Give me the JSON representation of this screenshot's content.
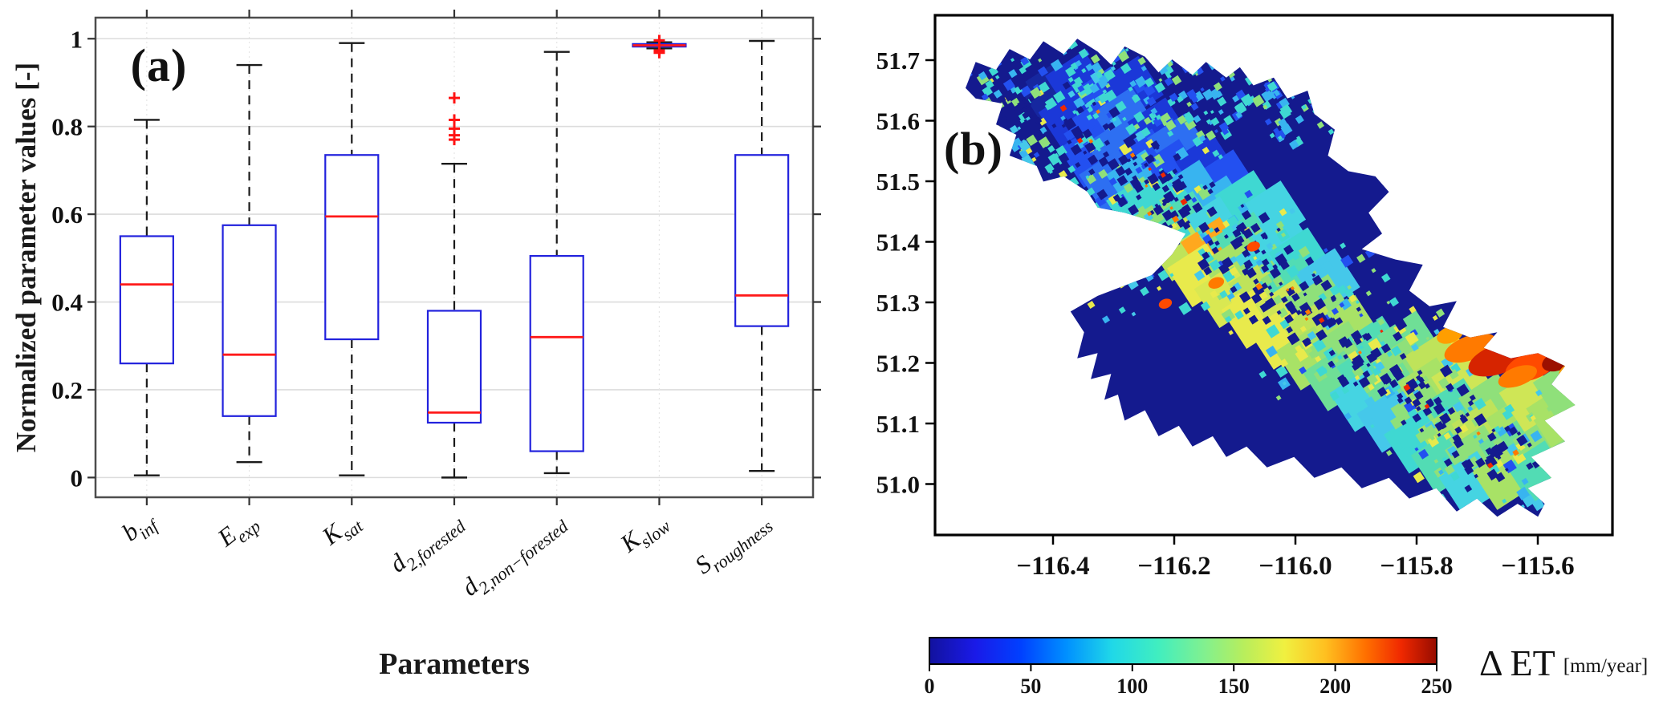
{
  "chart_data": [
    {
      "type": "boxplot",
      "panel": "(a)",
      "xlabel": "Parameters",
      "ylabel": "Normalized parameter values [-]",
      "ylim": [
        -0.045,
        1.048
      ],
      "yticks": [
        0,
        0.2,
        0.4,
        0.6,
        0.8,
        1
      ],
      "ytick_labels": [
        "0",
        "0.2",
        "0.4",
        "0.6",
        "0.8",
        "1"
      ],
      "grid": "horizontal solid, vertical dotted",
      "legend_position": "none",
      "box_color": "#2222dd",
      "median_color": "#ff1a1a",
      "whisker_color": "#1a1a1a",
      "outlier_color": "#ff1212",
      "outlier_marker": "+",
      "categories": [
        {
          "main": "b",
          "sub": "inf"
        },
        {
          "main": "E",
          "sub": "exp"
        },
        {
          "main": "K",
          "sub": "sat"
        },
        {
          "main": "d",
          "sub": "2,forested"
        },
        {
          "main": "d",
          "sub": "2,non−forested"
        },
        {
          "main": "K",
          "sub": "slow"
        },
        {
          "main": "S",
          "sub": "roughness"
        }
      ],
      "boxes": [
        {
          "whisker_low": 0.005,
          "q1": 0.26,
          "median": 0.44,
          "q3": 0.55,
          "whisker_high": 0.815,
          "outliers": []
        },
        {
          "whisker_low": 0.035,
          "q1": 0.14,
          "median": 0.28,
          "q3": 0.575,
          "whisker_high": 0.94,
          "outliers": []
        },
        {
          "whisker_low": 0.005,
          "q1": 0.315,
          "median": 0.595,
          "q3": 0.735,
          "whisker_high": 0.99,
          "outliers": []
        },
        {
          "whisker_low": 0.0,
          "q1": 0.125,
          "median": 0.148,
          "q3": 0.38,
          "whisker_high": 0.715,
          "outliers": [
            0.77,
            0.78,
            0.795,
            0.815,
            0.865
          ]
        },
        {
          "whisker_low": 0.01,
          "q1": 0.06,
          "median": 0.32,
          "q3": 0.505,
          "whisker_high": 0.97,
          "outliers": []
        },
        {
          "whisker_low": 0.978,
          "q1": 0.982,
          "median": 0.985,
          "q3": 0.988,
          "whisker_high": 0.992,
          "outliers": [
            0.996,
            0.973,
            0.968
          ]
        },
        {
          "whisker_low": 0.015,
          "q1": 0.345,
          "median": 0.415,
          "q3": 0.735,
          "whisker_high": 0.995,
          "outliers": []
        }
      ]
    },
    {
      "type": "heatmap",
      "panel": "(b)",
      "lat_ticks": [
        51.7,
        51.6,
        51.5,
        51.4,
        51.3,
        51.2,
        51.1,
        51.0
      ],
      "ytick_labels": [
        "51.7",
        "51.6",
        "51.5",
        "51.4",
        "51.3",
        "51.2",
        "51.1",
        "51.0"
      ],
      "lon_ticks": [
        -116.4,
        -116.2,
        -116.0,
        -115.8,
        -115.6
      ],
      "xtick_labels": [
        "−116.4",
        "−116.2",
        "−116.0",
        "−115.8",
        "−115.6"
      ],
      "lon_range": [
        -116.6,
        -115.48
      ],
      "lat_range": [
        50.92,
        51.77
      ],
      "colorbar": {
        "label": "Δ ET",
        "units": "[mm/year]",
        "colormap": "jet",
        "range": [
          0,
          250
        ],
        "ticks": [
          0,
          50,
          100,
          150,
          200,
          250
        ],
        "tick_labels": [
          "0",
          "50",
          "100",
          "150",
          "200",
          "250"
        ]
      },
      "background_value_color": "#141a8e",
      "speckle_palette": [
        "#3fd8d2",
        "#8fe07a",
        "#45c8ea",
        "#e8ea4c",
        "#2350f0",
        "#38b4f0"
      ],
      "outline": [
        [
          4.5,
          14
        ],
        [
          6,
          9
        ],
        [
          9,
          10.5
        ],
        [
          11,
          6.5
        ],
        [
          14,
          8.5
        ],
        [
          16,
          5
        ],
        [
          19,
          7.5
        ],
        [
          21,
          4.5
        ],
        [
          24,
          7
        ],
        [
          26,
          9.5
        ],
        [
          28,
          6
        ],
        [
          31,
          8
        ],
        [
          33,
          11
        ],
        [
          35,
          8.5
        ],
        [
          38,
          11.5
        ],
        [
          40,
          9
        ],
        [
          43,
          12
        ],
        [
          45,
          10
        ],
        [
          47,
          13.5
        ],
        [
          50,
          12
        ],
        [
          52,
          16
        ],
        [
          55,
          14.5
        ],
        [
          56,
          19
        ],
        [
          59,
          22
        ],
        [
          58,
          27
        ],
        [
          61,
          30
        ],
        [
          65,
          31
        ],
        [
          67,
          34
        ],
        [
          64,
          38
        ],
        [
          66,
          42
        ],
        [
          63,
          45
        ],
        [
          68,
          47
        ],
        [
          72,
          48
        ],
        [
          70,
          53
        ],
        [
          73,
          56
        ],
        [
          77,
          55
        ],
        [
          75,
          60
        ],
        [
          79,
          62
        ],
        [
          83,
          61
        ],
        [
          81,
          64
        ],
        [
          85,
          66
        ],
        [
          89,
          65
        ],
        [
          93,
          67.5
        ],
        [
          91,
          71
        ],
        [
          94.5,
          75
        ],
        [
          90,
          78
        ],
        [
          93,
          82
        ],
        [
          88,
          85
        ],
        [
          91,
          89
        ],
        [
          87.5,
          91
        ],
        [
          90,
          94
        ],
        [
          89,
          96.5
        ],
        [
          86,
          94
        ],
        [
          83,
          96.5
        ],
        [
          80,
          93
        ],
        [
          77,
          95.5
        ],
        [
          74,
          91
        ],
        [
          70,
          93
        ],
        [
          67,
          89
        ],
        [
          63,
          91
        ],
        [
          60,
          87
        ],
        [
          56,
          89
        ],
        [
          53,
          85
        ],
        [
          49,
          87
        ],
        [
          46,
          83
        ],
        [
          43,
          85
        ],
        [
          41,
          81
        ],
        [
          38,
          83
        ],
        [
          36,
          79
        ],
        [
          33,
          81
        ],
        [
          31,
          76
        ],
        [
          28,
          78
        ],
        [
          27,
          73
        ],
        [
          25,
          74
        ],
        [
          26,
          69
        ],
        [
          23,
          70
        ],
        [
          24,
          65
        ],
        [
          21,
          66
        ],
        [
          22,
          61
        ],
        [
          20,
          57
        ],
        [
          24,
          54
        ],
        [
          28,
          52
        ],
        [
          32,
          50
        ],
        [
          35,
          46
        ],
        [
          37,
          42
        ],
        [
          33,
          40
        ],
        [
          28,
          38
        ],
        [
          24,
          37
        ],
        [
          22.5,
          34
        ],
        [
          19,
          31
        ],
        [
          16,
          32
        ],
        [
          15,
          29
        ],
        [
          11,
          27
        ],
        [
          12,
          23
        ],
        [
          9,
          21
        ],
        [
          10,
          17
        ],
        [
          6,
          16
        ]
      ],
      "cells": [
        [
          17,
          15,
          "#16279f"
        ],
        [
          21,
          13,
          "#1b38d8"
        ],
        [
          25,
          16,
          "#2350f0"
        ],
        [
          29,
          14,
          "#1b38d8"
        ],
        [
          20,
          20,
          "#1b38d8"
        ],
        [
          24,
          22,
          "#2350f0"
        ],
        [
          28,
          20,
          "#2d6ff2"
        ],
        [
          33,
          22,
          "#1b38d8"
        ],
        [
          23,
          27,
          "#2350f0"
        ],
        [
          27,
          26,
          "#2d6ff2"
        ],
        [
          31,
          28,
          "#2350f0"
        ],
        [
          36,
          25,
          "#2d6ff2"
        ],
        [
          26,
          32,
          "#2d6ff2"
        ],
        [
          30,
          32,
          "#38b4f0"
        ],
        [
          35,
          30,
          "#2350f0"
        ],
        [
          40,
          29,
          "#1b38d8"
        ],
        [
          43,
          32,
          "#2350f0"
        ],
        [
          38,
          34,
          "#38b4f0"
        ],
        [
          34,
          36,
          "#3fd8d2"
        ],
        [
          30,
          37,
          "#3fd8d2"
        ],
        [
          42,
          37,
          "#38b4f0"
        ],
        [
          46,
          36,
          "#3fd8d2"
        ],
        [
          50,
          38,
          "#45d4e2"
        ],
        [
          33,
          41,
          "#8fe07a"
        ],
        [
          37,
          40,
          "#52dcb4"
        ],
        [
          41,
          41,
          "#45d4e2"
        ],
        [
          36,
          45,
          "#bfe35a"
        ],
        [
          41,
          45,
          "#ffa81e"
        ],
        [
          46,
          44,
          "#52dcb4"
        ],
        [
          51,
          43,
          "#45d4e2"
        ],
        [
          39,
          50,
          "#e8ea4c"
        ],
        [
          44,
          49,
          "#a8e266"
        ],
        [
          49,
          48,
          "#45d4e2"
        ],
        [
          54,
          47,
          "#3fd8d2"
        ],
        [
          43,
          54,
          "#d9e852"
        ],
        [
          48,
          53,
          "#bfe35a"
        ],
        [
          53,
          52,
          "#52dcb4"
        ],
        [
          58,
          51,
          "#45c8ea"
        ],
        [
          47,
          58,
          "#e8ea4c"
        ],
        [
          52,
          57,
          "#cfe656"
        ],
        [
          57,
          56,
          "#8fe07a"
        ],
        [
          51,
          62,
          "#e8ea4c"
        ],
        [
          56,
          61,
          "#bfe35a"
        ],
        [
          61,
          60,
          "#a8e266"
        ],
        [
          55,
          66,
          "#a8e266"
        ],
        [
          60,
          65,
          "#8fe07a"
        ],
        [
          65,
          64,
          "#52dcb4"
        ],
        [
          70,
          63,
          "#6fdf96"
        ],
        [
          59,
          70,
          "#6fdf96"
        ],
        [
          64,
          69,
          "#52dcb4"
        ],
        [
          69,
          68,
          "#8fe07a"
        ],
        [
          74,
          67,
          "#bfe35a"
        ],
        [
          63,
          74,
          "#45d4e2"
        ],
        [
          68,
          73,
          "#6fdf96"
        ],
        [
          73,
          72,
          "#a8e266"
        ],
        [
          78,
          71,
          "#cfe656"
        ],
        [
          67,
          78,
          "#45c8ea"
        ],
        [
          72,
          77,
          "#8fe07a"
        ],
        [
          77,
          76,
          "#52dcb4"
        ],
        [
          82,
          75,
          "#8fe07a"
        ],
        [
          71,
          82,
          "#3fd8d2"
        ],
        [
          76,
          81,
          "#a8e266"
        ],
        [
          81,
          80,
          "#bfe35a"
        ],
        [
          86,
          79,
          "#a8e266"
        ],
        [
          75,
          86,
          "#52dcb4"
        ],
        [
          80,
          85,
          "#8fe07a"
        ],
        [
          85,
          84,
          "#6fdf96"
        ],
        [
          90,
          83,
          "#8fe07a"
        ],
        [
          79,
          90,
          "#45d4e2"
        ],
        [
          84,
          89,
          "#a8e266"
        ],
        [
          89,
          88,
          "#52dcb4"
        ],
        [
          88,
          74,
          "#cfe656"
        ],
        [
          92,
          77,
          "#a8e266"
        ],
        [
          93,
          72,
          "#8fe07a"
        ]
      ],
      "hotspots": [
        [
          79,
          64,
          4,
          1.8,
          "#ff7a00"
        ],
        [
          83.5,
          66,
          5,
          2.2,
          "#d62400"
        ],
        [
          88,
          67.5,
          4,
          2,
          "#ff4a00"
        ],
        [
          92,
          66.5,
          2.5,
          1.4,
          "#9b1000"
        ],
        [
          94,
          68.5,
          2,
          1.2,
          "#ff9e00"
        ],
        [
          76,
          61.5,
          2,
          1.2,
          "#ff9e00"
        ],
        [
          86,
          69.5,
          3,
          1.4,
          "#ff7a00"
        ],
        [
          41.5,
          51.5,
          1.2,
          0.8,
          "#ff7a00"
        ],
        [
          34,
          55.5,
          1,
          0.7,
          "#ff4a00"
        ],
        [
          29.5,
          47.5,
          1,
          0.7,
          "#ff7a00"
        ],
        [
          47,
          44.5,
          1,
          0.7,
          "#ff4a00"
        ]
      ]
    }
  ]
}
